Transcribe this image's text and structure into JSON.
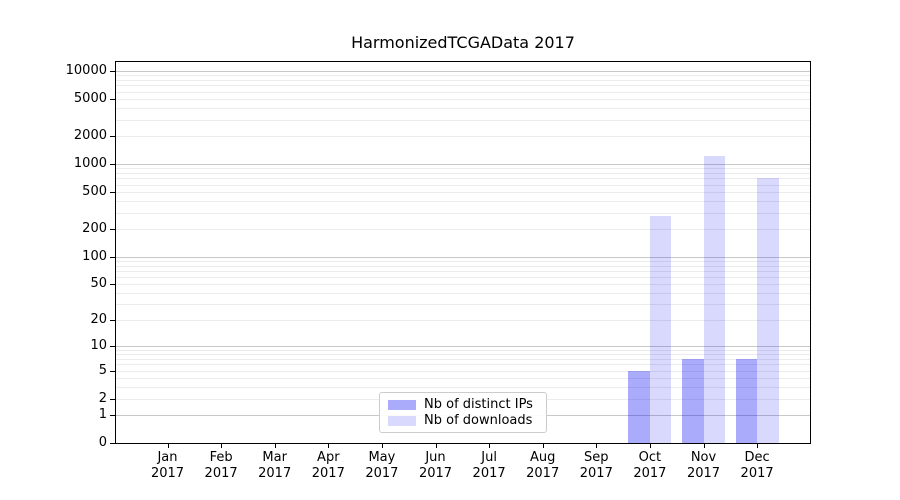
{
  "figure": {
    "background": "#ffffff"
  },
  "chart_data": {
    "type": "bar",
    "title": "HarmonizedTCGAData 2017",
    "categories": [
      "Jan",
      "Feb",
      "Mar",
      "Apr",
      "May",
      "Jun",
      "Jul",
      "Aug",
      "Sep",
      "Oct",
      "Nov",
      "Dec"
    ],
    "year_label": "2017",
    "series": [
      {
        "name": "Nb of distinct IPs",
        "color": "#0000f5",
        "alpha": 0.33,
        "values": [
          0,
          0,
          0,
          0,
          0,
          0,
          0,
          0,
          0,
          5,
          7,
          7
        ]
      },
      {
        "name": "Nb of downloads",
        "color": "#0000f5",
        "alpha": 0.15,
        "values": [
          0,
          0,
          0,
          0,
          0,
          0,
          0,
          0,
          0,
          275,
          1230,
          700
        ]
      }
    ],
    "yscale": "log10(1+x)",
    "ylim": [
      0,
      12500
    ],
    "yticks": [
      0,
      1,
      2,
      5,
      10,
      20,
      50,
      100,
      200,
      500,
      1000,
      2000,
      5000,
      10000
    ],
    "grid": {
      "major_at": [
        1,
        10,
        100,
        1000,
        10000
      ],
      "minor": "2-9 per decade",
      "major_color": "#c8c8c8",
      "minor_color": "#ececec"
    },
    "legend_position": "lower center",
    "xlabel": "",
    "ylabel": ""
  }
}
